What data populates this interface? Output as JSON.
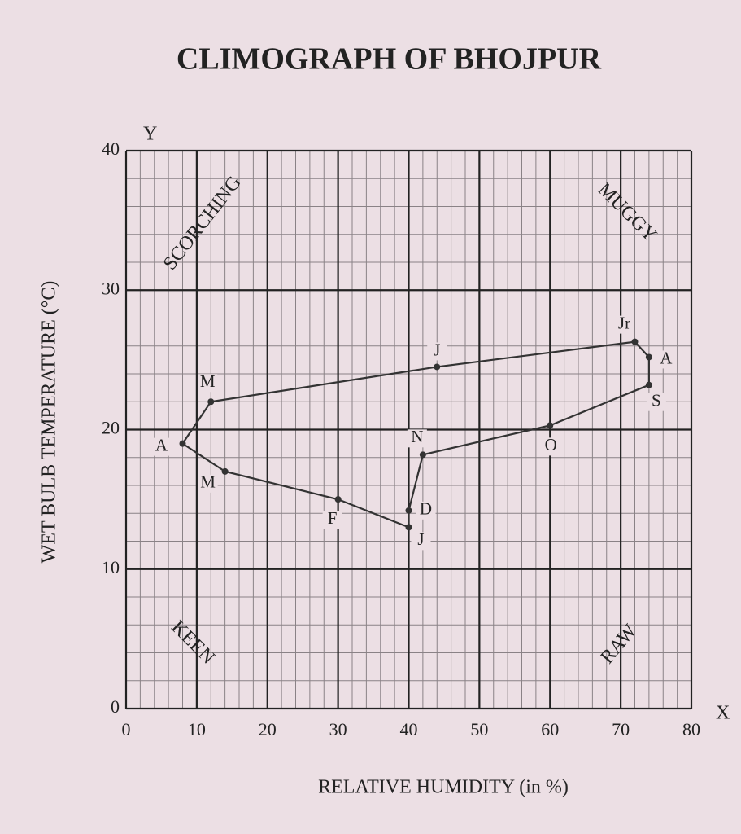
{
  "chart_data": {
    "type": "line",
    "title": "CLIMOGRAPH OF BHOJPUR",
    "xlabel": "RELATIVE HUMIDITY (in %)",
    "ylabel": "WET BULB TEMPERATURE (°C)",
    "axis_letters": {
      "x": "X",
      "y": "Y"
    },
    "x": [
      40,
      30,
      14,
      8,
      12,
      44,
      72,
      74,
      74,
      60,
      42,
      40
    ],
    "values": [
      13,
      15,
      17,
      19,
      22,
      24.5,
      26.3,
      25.2,
      23.2,
      20.3,
      18.2,
      14.2
    ],
    "point_labels": [
      "J",
      "F",
      "M",
      "A",
      "M",
      "J",
      "Jr",
      "A",
      "S",
      "O",
      "N",
      "D"
    ],
    "closed": true,
    "color": "#333333",
    "xlim": [
      0,
      80
    ],
    "ylim": [
      0,
      40
    ],
    "xticks": [
      0,
      10,
      20,
      30,
      40,
      50,
      60,
      70,
      80
    ],
    "yticks": [
      0,
      10,
      20,
      30,
      40
    ],
    "grid": true,
    "annotations": [
      "SCORCHING",
      "MUGGY",
      "KEEN",
      "RAW"
    ]
  }
}
